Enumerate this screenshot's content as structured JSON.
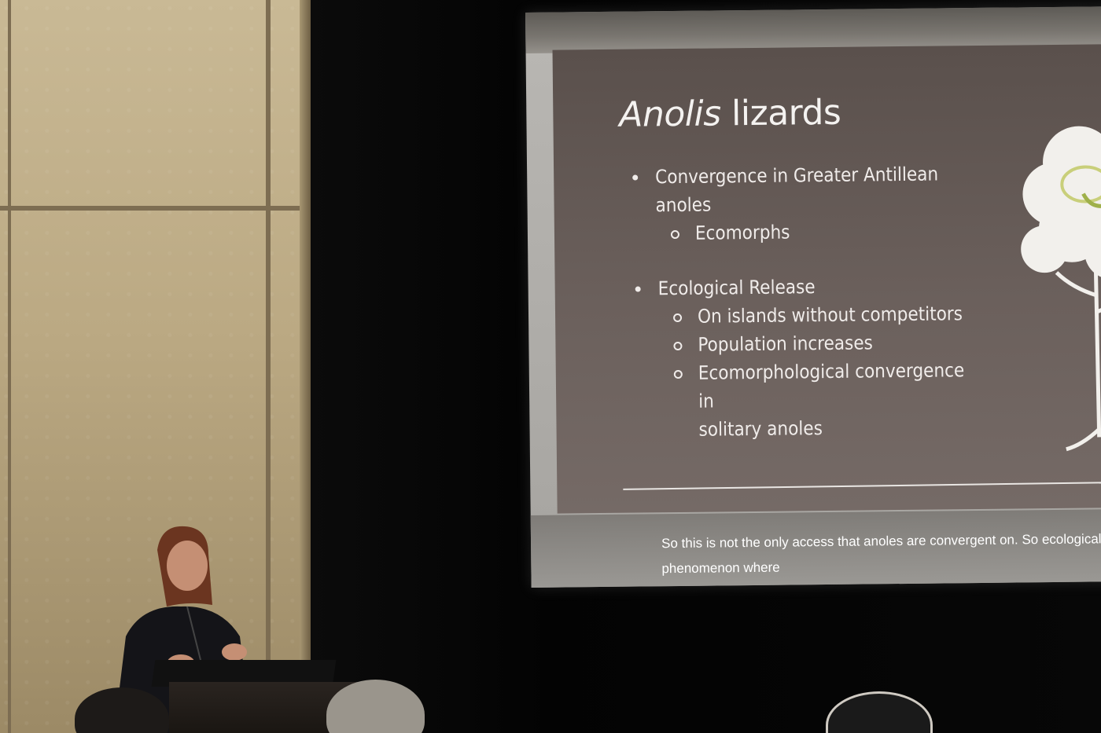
{
  "slide": {
    "title_italic": "Anolis",
    "title_rest": " lizards",
    "bullets": [
      {
        "text": "Convergence in Greater Antillean",
        "cont": "anoles"
      },
      {
        "sub": "Ecomorphs"
      },
      {
        "text": "Ecological Release"
      },
      {
        "sub": "On islands without competitors"
      },
      {
        "sub": "Population increases"
      },
      {
        "sub": "Ecomorphological convergence in",
        "cont": "solitary anoles"
      }
    ]
  },
  "caption": {
    "line1": "So this is not the only access that anoles are convergent on. So ecological",
    "line2": "phenomenon where"
  },
  "colors": {
    "wall": "#c9b995",
    "slide_bg": "#6b605c",
    "screen": "#b9b7b3"
  }
}
